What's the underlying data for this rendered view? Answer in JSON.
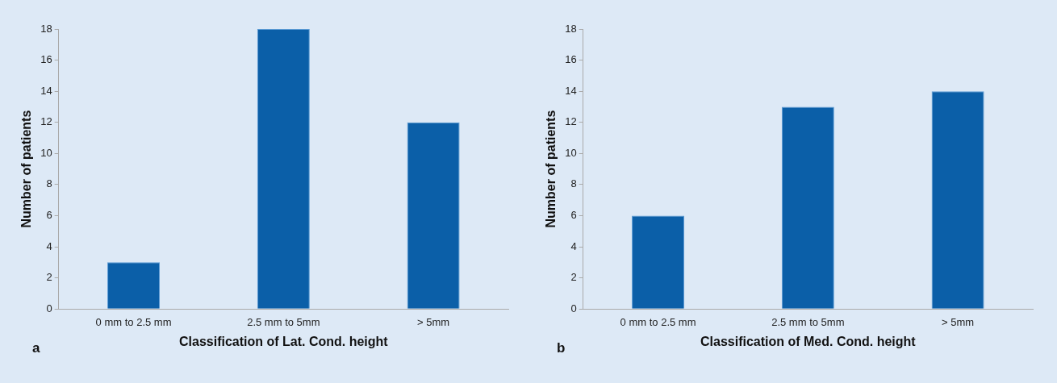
{
  "chart_data": [
    {
      "type": "bar",
      "categories": [
        "0 mm to 2.5 mm",
        "2.5 mm to 5mm",
        "> 5mm"
      ],
      "values": [
        3,
        18,
        12
      ],
      "color": "#0b5fa8",
      "xlabel": "Classification of Lat. Cond. height",
      "ylabel": "Number of patients",
      "ylim": [
        0,
        18
      ],
      "yticks": [
        0,
        2,
        4,
        6,
        8,
        10,
        12,
        14,
        16,
        18
      ],
      "grid": false,
      "legend": false,
      "annotations": [
        "a"
      ]
    },
    {
      "type": "bar",
      "categories": [
        "0 mm to 2.5 mm",
        "2.5 mm to 5mm",
        "> 5mm"
      ],
      "values": [
        6,
        13,
        14
      ],
      "color": "#0b5fa8",
      "xlabel": "Classification of Med. Cond. height",
      "ylabel": "Number of patients",
      "ylim": [
        0,
        18
      ],
      "yticks": [
        0,
        2,
        4,
        6,
        8,
        10,
        12,
        14,
        16,
        18
      ],
      "grid": false,
      "legend": false,
      "annotations": [
        "b"
      ]
    }
  ]
}
